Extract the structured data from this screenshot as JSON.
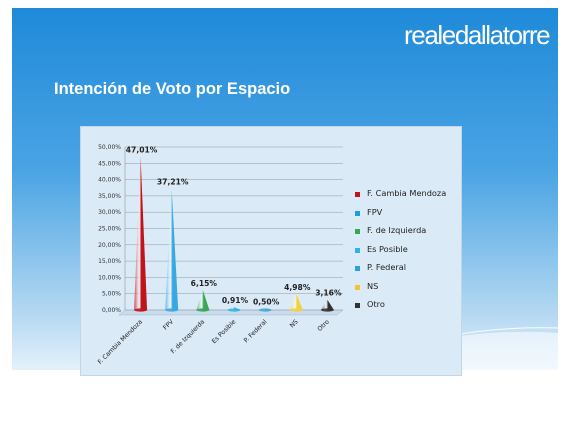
{
  "logo": {
    "text": "realedallatorre"
  },
  "slide": {
    "title": "Intención de Voto por Espacio"
  },
  "colors": {
    "background_top": "#1e88d8",
    "background_bottom": "#d7eaf8",
    "panel": "#dbeaf7"
  },
  "chart_data": {
    "type": "bar",
    "shape": "cone",
    "title": "",
    "xlabel": "",
    "ylabel": "",
    "ylim": [
      0,
      50
    ],
    "ytick_step": 5,
    "ytick_suffix": "%",
    "grid": true,
    "legend_position": "right",
    "categories": [
      "F. Cambia Mendoza",
      "FPV",
      "F. de Izquierda",
      "Es Posible",
      "P. Federal",
      "NS",
      "Otro"
    ],
    "values": [
      47.01,
      37.21,
      6.15,
      0.91,
      0.5,
      4.98,
      3.16
    ],
    "value_labels": [
      "47,01%",
      "37,21%",
      "6,15%",
      "0,91%",
      "0,50%",
      "4,98%",
      "3,16%"
    ],
    "colors": [
      "#c0141c",
      "#3aa8e0",
      "#3aa651",
      "#3ab2e3",
      "#4aa6dc",
      "#f4d03f",
      "#333333"
    ],
    "legend": [
      {
        "label": "F. Cambia Mendoza",
        "color": "#c0141c"
      },
      {
        "label": "FPV",
        "color": "#1e9de0"
      },
      {
        "label": "F. de Izquierda",
        "color": "#3aa651"
      },
      {
        "label": "Es Posible",
        "color": "#29b5e8"
      },
      {
        "label": "P. Federal",
        "color": "#2aa0dc"
      },
      {
        "label": "NS",
        "color": "#f4c430"
      },
      {
        "label": "Otro",
        "color": "#333333"
      }
    ]
  }
}
